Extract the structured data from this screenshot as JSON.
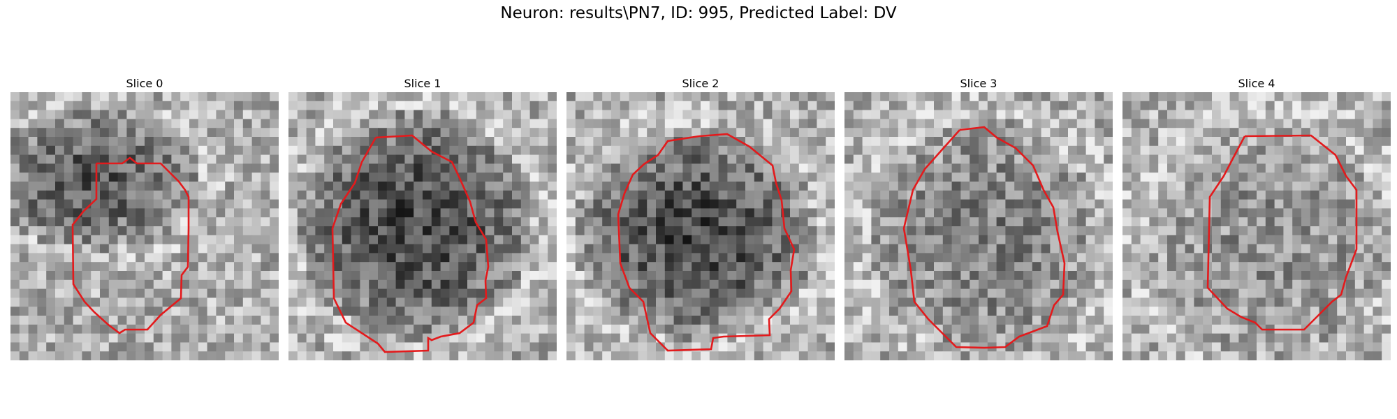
{
  "figure": {
    "title": "Neuron: results\\PN7, ID: 995, Predicted Label: DV"
  },
  "panels": [
    {
      "title": "Slice 0"
    },
    {
      "title": "Slice 1"
    },
    {
      "title": "Slice 2"
    },
    {
      "title": "Slice 3"
    },
    {
      "title": "Slice 4"
    }
  ],
  "colors": {
    "contour": "#e31a1c"
  }
}
